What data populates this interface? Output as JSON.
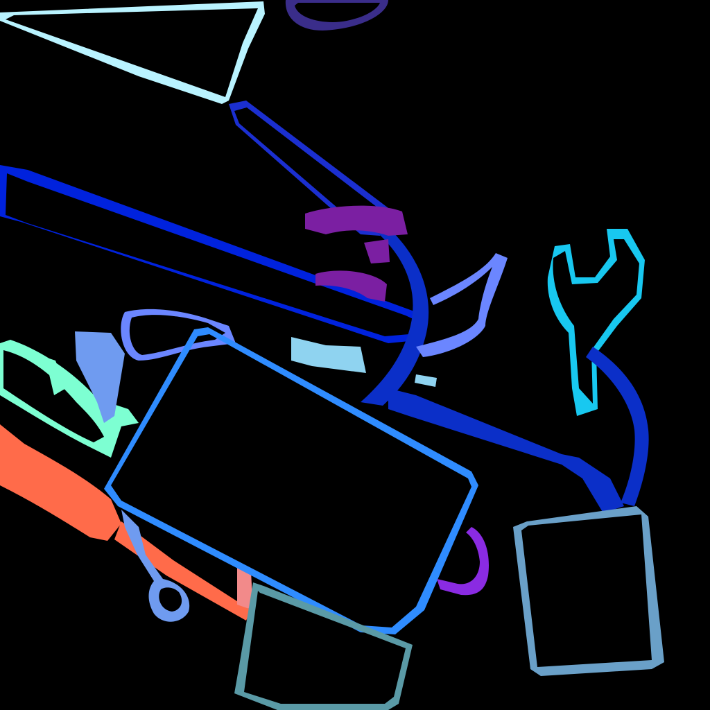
{
  "scene": {
    "background": "#000000",
    "objects": [
      {
        "name": "notebook-top-left",
        "color": "#b9f3ff"
      },
      {
        "name": "ring-top",
        "color": "#3a2d8a"
      },
      {
        "name": "long-handle-tool",
        "color": "#0022dd"
      },
      {
        "name": "screwdriver-shaft",
        "color": "#1b2fd0"
      },
      {
        "name": "purple-clip",
        "color": "#7b1fa2"
      },
      {
        "name": "cloth-piece",
        "color": "#6b86ff"
      },
      {
        "name": "pale-blue-strip",
        "color": "#8fd3f0"
      },
      {
        "name": "green-pliers",
        "color": "#7dffd2"
      },
      {
        "name": "orange-screwdriver",
        "color": "#ff6b4a"
      },
      {
        "name": "small-wrench",
        "color": "#6f9bf0"
      },
      {
        "name": "pink-block",
        "color": "#f28a8a"
      },
      {
        "name": "tablet-device",
        "color": "#2f8cff"
      },
      {
        "name": "teal-box",
        "color": "#5a9aa6"
      },
      {
        "name": "magenta-blob",
        "color": "#8a2be2"
      },
      {
        "name": "adjustable-wrench",
        "color": "#18c8f0"
      },
      {
        "name": "hammer-head",
        "color": "#0b2fc8"
      },
      {
        "name": "steel-blue-box",
        "color": "#6aa0c8"
      }
    ]
  }
}
